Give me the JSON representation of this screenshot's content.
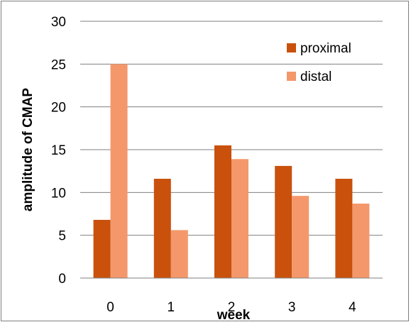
{
  "chart_data": {
    "type": "bar",
    "title": "",
    "xlabel": "week",
    "ylabel": "amplitude of CMAP",
    "categories": [
      "0",
      "1",
      "2",
      "3",
      "4"
    ],
    "series": [
      {
        "name": "proximal",
        "color": "#c9510c",
        "values": [
          6.8,
          11.6,
          15.5,
          13.1,
          11.6
        ]
      },
      {
        "name": "distal",
        "color": "#f4986b",
        "values": [
          25.0,
          5.6,
          13.9,
          9.6,
          8.7
        ]
      }
    ],
    "ylim": [
      0,
      30
    ],
    "yticks": [
      "0",
      "5",
      "10",
      "15",
      "20",
      "25",
      "30"
    ],
    "grid": true,
    "legend": "top-right"
  }
}
